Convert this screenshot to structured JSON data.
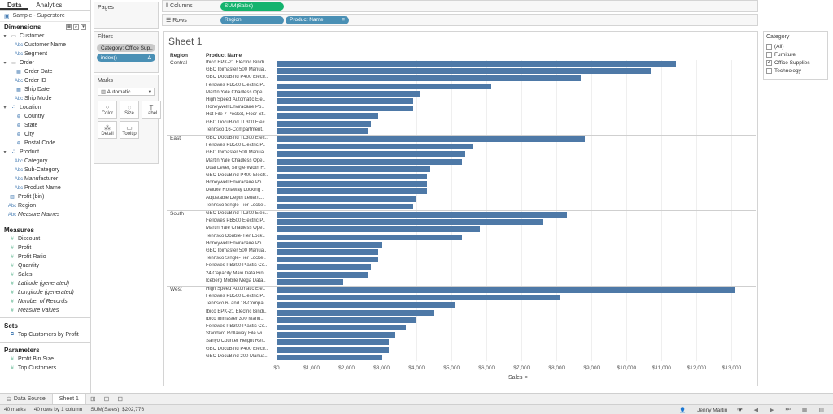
{
  "data_pane": {
    "tabs": [
      "Data",
      "Analytics"
    ],
    "datasource": "Sample - Superstore",
    "dimensions_label": "Dimensions",
    "dimensions": [
      {
        "label": "Customer",
        "type": "folder",
        "level": 1
      },
      {
        "label": "Customer Name",
        "type": "abc",
        "level": 2
      },
      {
        "label": "Segment",
        "type": "abc",
        "level": 2
      },
      {
        "label": "Order",
        "type": "folder",
        "level": 1
      },
      {
        "label": "Order Date",
        "type": "date",
        "level": 2
      },
      {
        "label": "Order ID",
        "type": "abc",
        "level": 2
      },
      {
        "label": "Ship Date",
        "type": "date",
        "level": 2
      },
      {
        "label": "Ship Mode",
        "type": "abc",
        "level": 2
      },
      {
        "label": "Location",
        "type": "hier",
        "level": 1
      },
      {
        "label": "Country",
        "type": "geo",
        "level": 2
      },
      {
        "label": "State",
        "type": "geo",
        "level": 2
      },
      {
        "label": "City",
        "type": "geo",
        "level": 2
      },
      {
        "label": "Postal Code",
        "type": "geo",
        "level": 2
      },
      {
        "label": "Product",
        "type": "hier",
        "level": 1
      },
      {
        "label": "Category",
        "type": "abc",
        "level": 2
      },
      {
        "label": "Sub-Category",
        "type": "abc",
        "level": 2
      },
      {
        "label": "Manufacturer",
        "type": "abc",
        "level": 2
      },
      {
        "label": "Product Name",
        "type": "abc",
        "level": 2
      },
      {
        "label": "Profit (bin)",
        "type": "bin",
        "level": 0
      },
      {
        "label": "Region",
        "type": "abc",
        "level": 0
      },
      {
        "label": "Measure Names",
        "type": "abc",
        "level": 0,
        "italic": true
      }
    ],
    "measures_label": "Measures",
    "measures": [
      {
        "label": "Discount",
        "italic": false
      },
      {
        "label": "Profit",
        "italic": false
      },
      {
        "label": "Profit Ratio",
        "italic": false
      },
      {
        "label": "Quantity",
        "italic": false
      },
      {
        "label": "Sales",
        "italic": false
      },
      {
        "label": "Latitude (generated)",
        "italic": true
      },
      {
        "label": "Longitude (generated)",
        "italic": true
      },
      {
        "label": "Number of Records",
        "italic": true
      },
      {
        "label": "Measure Values",
        "italic": true
      }
    ],
    "sets_label": "Sets",
    "sets": [
      "Top Customers by Profit"
    ],
    "parameters_label": "Parameters",
    "parameters": [
      "Profit Bin Size",
      "Top Customers"
    ]
  },
  "cards": {
    "pages": "Pages",
    "filters": "Filters",
    "filter_pills": [
      "Category: Office Sup..",
      "index()"
    ],
    "marks": "Marks",
    "marks_type": "Automatic",
    "mark_buttons": [
      {
        "label": "Color",
        "glyph": "⁘"
      },
      {
        "label": "Size",
        "glyph": "◌"
      },
      {
        "label": "Label",
        "glyph": "T"
      },
      {
        "label": "Detail",
        "glyph": "⁂"
      },
      {
        "label": "Tooltip",
        "glyph": "▭"
      }
    ]
  },
  "shelves": {
    "columns_label": "Columns",
    "columns_pills": [
      "SUM(Sales)"
    ],
    "rows_label": "Rows",
    "rows_pills": [
      "Region",
      "Product Name"
    ]
  },
  "sheet_title": "Sheet 1",
  "chart_data": {
    "type": "bar",
    "orientation": "horizontal",
    "row_headers": [
      "Region",
      "Product Name"
    ],
    "xlabel": "Sales",
    "xlim": [
      0,
      13500
    ],
    "xticks": [
      "$0",
      "$1,000",
      "$2,000",
      "$3,000",
      "$4,000",
      "$5,000",
      "$6,000",
      "$7,000",
      "$8,000",
      "$9,000",
      "$10,000",
      "$11,000",
      "$12,000",
      "$13,000"
    ],
    "groups": [
      {
        "region": "Central",
        "rows": [
          {
            "name": "Ibico EPK-21 Electric Bindi..",
            "value": 11400
          },
          {
            "name": "GBC Ibimaster 500 Manua..",
            "value": 10700
          },
          {
            "name": "GBC DocuBind P400 Electr..",
            "value": 8700
          },
          {
            "name": "Fellowes PB500 Electric P..",
            "value": 6100
          },
          {
            "name": "Martin Yale Chadless Ope..",
            "value": 4100
          },
          {
            "name": "High Speed Automatic Ele..",
            "value": 3900
          },
          {
            "name": "Honeywell Enviracaire Po..",
            "value": 3900
          },
          {
            "name": "Hot File 7-Pocket, Floor St..",
            "value": 2900
          },
          {
            "name": "GBC DocuBind TL300 Elec..",
            "value": 2700
          },
          {
            "name": "Tennsco 16-Compartment..",
            "value": 2600
          }
        ]
      },
      {
        "region": "East",
        "rows": [
          {
            "name": "GBC DocuBind TL300 Elec..",
            "value": 8800
          },
          {
            "name": "Fellowes PB500 Electric P..",
            "value": 5600
          },
          {
            "name": "GBC Ibimaster 500 Manua..",
            "value": 5400
          },
          {
            "name": "Martin Yale Chadless Ope..",
            "value": 5300
          },
          {
            "name": "Dual Level, Single-Width F..",
            "value": 4400
          },
          {
            "name": "GBC DocuBind P400 Electr..",
            "value": 4300
          },
          {
            "name": "Honeywell Enviracaire Po..",
            "value": 4300
          },
          {
            "name": "Deluxe Rollaway Locking ..",
            "value": 4300
          },
          {
            "name": "Adjustable Depth Letter/L..",
            "value": 4000
          },
          {
            "name": "Tennsco Single-Tier Locke..",
            "value": 3900
          }
        ]
      },
      {
        "region": "South",
        "rows": [
          {
            "name": "GBC DocuBind TL300 Elec..",
            "value": 8300
          },
          {
            "name": "Fellowes PB500 Electric P..",
            "value": 7600
          },
          {
            "name": "Martin Yale Chadless Ope..",
            "value": 5800
          },
          {
            "name": "Tennsco Double-Tier Lock..",
            "value": 5300
          },
          {
            "name": "Honeywell Enviracaire Po..",
            "value": 3000
          },
          {
            "name": "GBC Ibimaster 500 Manua..",
            "value": 2900
          },
          {
            "name": "Tennsco Single-Tier Locke..",
            "value": 2900
          },
          {
            "name": "Fellowes PB300 Plastic Co..",
            "value": 2700
          },
          {
            "name": "24 Capacity Maxi Data Bin..",
            "value": 2600
          },
          {
            "name": "Iceberg Mobile Mega Data..",
            "value": 1900
          }
        ]
      },
      {
        "region": "West",
        "rows": [
          {
            "name": "High Speed Automatic Ele..",
            "value": 13100
          },
          {
            "name": "Fellowes PB500 Electric P..",
            "value": 8100
          },
          {
            "name": "Tennsco 6- and 18-Compa..",
            "value": 5100
          },
          {
            "name": "Ibico EPK-21 Electric Bindi..",
            "value": 4500
          },
          {
            "name": "Ibico Ibimaster 300 Manu..",
            "value": 4000
          },
          {
            "name": "Fellowes PB300 Plastic Co..",
            "value": 3700
          },
          {
            "name": "Standard Rollaway File wi..",
            "value": 3400
          },
          {
            "name": "Sanyo Counter Height Ref..",
            "value": 3200
          },
          {
            "name": "GBC DocuBind P400 Electr..",
            "value": 3200
          },
          {
            "name": "GBC DocuBind 200 Manua..",
            "value": 3000
          }
        ]
      }
    ],
    "bar_color": "#4e79a7"
  },
  "legend": {
    "title": "Category",
    "items": [
      {
        "label": "(All)",
        "checked": false
      },
      {
        "label": "Furniture",
        "checked": false
      },
      {
        "label": "Office Supplies",
        "checked": true
      },
      {
        "label": "Technology",
        "checked": false
      }
    ]
  },
  "bottom_tabs": {
    "data_source": "Data Source",
    "sheet": "Sheet 1"
  },
  "status": {
    "marks": "40 marks",
    "rows": "40 rows by 1 column",
    "sum": "SUM(Sales): $202,776",
    "user": "Jenny Martin"
  }
}
